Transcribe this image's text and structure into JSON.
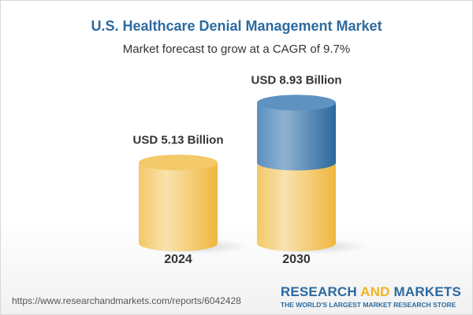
{
  "title": "U.S. Healthcare Denial Management Market",
  "subtitle": "Market forecast to grow at a CAGR of 9.7%",
  "chart_data": {
    "type": "bar",
    "style": "3d-cylinder",
    "categories": [
      "2024",
      "2030"
    ],
    "values": [
      5.13,
      8.93
    ],
    "data_labels": [
      "USD 5.13 Billion",
      "USD 8.93 Billion"
    ],
    "unit": "USD Billion",
    "colors": {
      "base": "#f2c15a",
      "growth": "#3f79ad"
    }
  },
  "footer": {
    "url": "https://www.researchandmarkets.com/reports/6042428",
    "logo_part1": "RESEARCH ",
    "logo_part2": "AND",
    "logo_part3": " MARKETS",
    "logo_tagline": "THE WORLD'S LARGEST MARKET RESEARCH STORE"
  }
}
